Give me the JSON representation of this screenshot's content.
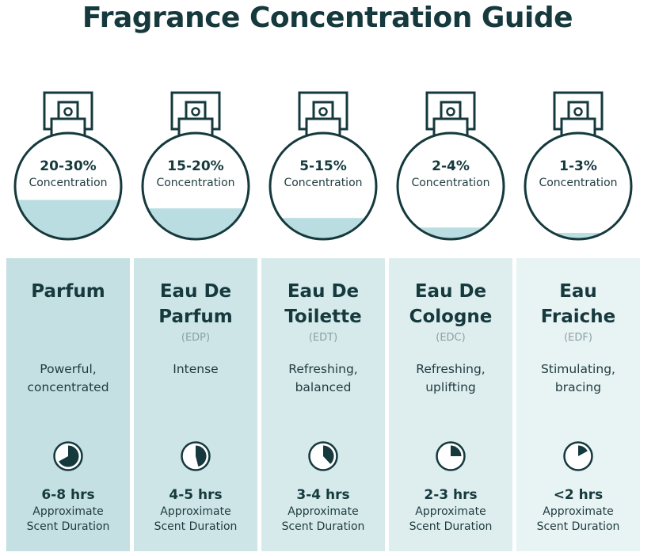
{
  "title": "Fragrance Concentration Guide",
  "colors": {
    "dark": "#15393d",
    "liquid": "#b9dde1",
    "card_start": "#c3dfe1",
    "card_end": "#eaf4f5"
  },
  "duration_label": [
    "Approximate",
    "Scent Duration"
  ],
  "types": [
    {
      "concentration": "20-30%",
      "concentration_label": "Concentration",
      "fill_level": 0.37,
      "name_lines": [
        "Parfum"
      ],
      "abbreviation": "",
      "description_lines": [
        "Powerful,",
        "concentrated"
      ],
      "clock_fraction": 0.67,
      "duration": "6-8 hrs",
      "card_color": "#c4e0e2"
    },
    {
      "concentration": "15-20%",
      "concentration_label": "Concentration",
      "fill_level": 0.29,
      "name_lines": [
        "Eau De",
        "Parfum"
      ],
      "abbreviation": "(EDP)",
      "description_lines": [
        "Intense"
      ],
      "clock_fraction": 0.46,
      "duration": "4-5 hrs",
      "card_color": "#cde5e6"
    },
    {
      "concentration": "5-15%",
      "concentration_label": "Concentration",
      "fill_level": 0.2,
      "name_lines": [
        "Eau De",
        "Toilette"
      ],
      "abbreviation": "(EDT)",
      "description_lines": [
        "Refreshing,",
        "balanced"
      ],
      "clock_fraction": 0.38,
      "duration": "3-4 hrs",
      "card_color": "#d6eaeb"
    },
    {
      "concentration": "2-4%",
      "concentration_label": "Concentration",
      "fill_level": 0.11,
      "name_lines": [
        "Eau De",
        "Cologne"
      ],
      "abbreviation": "(EDC)",
      "description_lines": [
        "Refreshing,",
        "uplifting"
      ],
      "clock_fraction": 0.25,
      "duration": "2-3 hrs",
      "card_color": "#deeeef"
    },
    {
      "concentration": "1-3%",
      "concentration_label": "Concentration",
      "fill_level": 0.06,
      "name_lines": [
        "Eau",
        "Fraiche"
      ],
      "abbreviation": "(EDF)",
      "description_lines": [
        "Stimulating,",
        "bracing"
      ],
      "clock_fraction": 0.17,
      "duration": "<2 hrs",
      "card_color": "#e8f3f4"
    }
  ]
}
